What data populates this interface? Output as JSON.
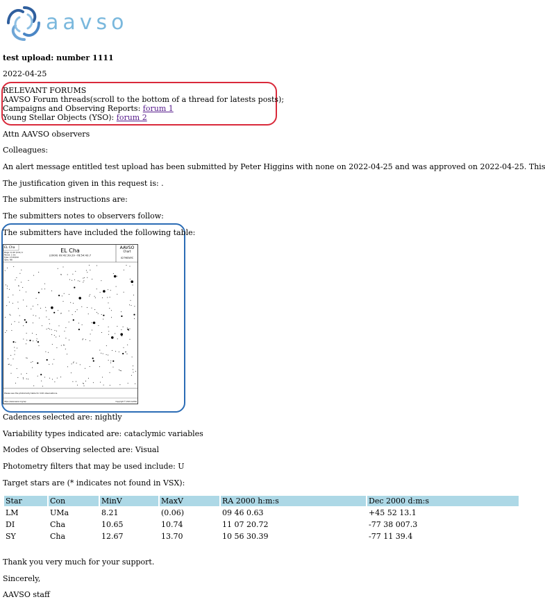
{
  "logo": {
    "text": "aavso",
    "name": "AAVSO"
  },
  "title": "test upload: number 1111",
  "date": "2022-04-25",
  "forums": {
    "heading": "RELEVANT FORUMS",
    "line1": "AAVSO Forum threads(scroll to the bottom of a thread for latests posts);",
    "line2_prefix": "Campaigns and Observing Reports: ",
    "link1": "forum 1",
    "line3_prefix": "Young Stellar Objects (YSO): ",
    "link2": "forum 2"
  },
  "greeting": "Attn AAVSO observers",
  "colleagues": "Colleagues:",
  "alert": "An alert message entitled test upload has been submitted by Peter Higgins with none on 2022-04-25 and was approved on 2022-04-25. This",
  "justification": "The justification given in this request is: .",
  "instructions": "The submitters instructions are:",
  "notes": "The submitters notes to observers follow:",
  "table_intro": "The submitters have included the following table:",
  "chart": {
    "star_name": "EL Cha",
    "title": "EL Cha",
    "coords": "(2000) 09:42:39.29  -78:54:43.7",
    "brand": "AAVSO",
    "subtitle": "Chart",
    "chart_id": "X27983AYC",
    "info1": "Mags:  11.00 (0.01) V",
    "info2": "Period:  1 dm",
    "info3": "Type:  1715/8/10",
    "info4": "Spec:  NB",
    "footer_note": "Please see the photometry table for CCD observations.",
    "footer_left": "https://www.aavso.org/vsp",
    "footer_right": "Copyright © 2022 AAVSO"
  },
  "cadences": "Cadences selected are: nightly",
  "variability": "Variability types indicated are: cataclymic variables",
  "modes": "Modes of Observing selected are: Visual",
  "filters": "Photometry filters that may be used include: U",
  "target_intro": "Target stars are (* indicates not found in VSX):",
  "targets": {
    "headers": [
      "Star",
      "Con",
      "MinV",
      "MaxV",
      "RA 2000 h:m:s",
      "Dec 2000 d:m:s"
    ],
    "rows": [
      [
        "LM",
        "UMa",
        "8.21",
        "(0.06)",
        "09 46 0.63",
        "+45 52 13.1"
      ],
      [
        "DI",
        "Cha",
        "10.65",
        "10.74",
        "11 07 20.72",
        "-77 38 007.3"
      ],
      [
        "SY",
        "Cha",
        "12.67",
        "13.70",
        "10 56 30.39",
        "-77 11 39.4"
      ]
    ]
  },
  "thanks": "Thank you very much for your support.",
  "sincerely": "Sincerely,",
  "signature": "AAVSO staff",
  "colors": {
    "link": "#551a8b",
    "table_header": "#add8e6",
    "annotation_red": "#d9293a",
    "annotation_blue": "#2b6cb5"
  }
}
